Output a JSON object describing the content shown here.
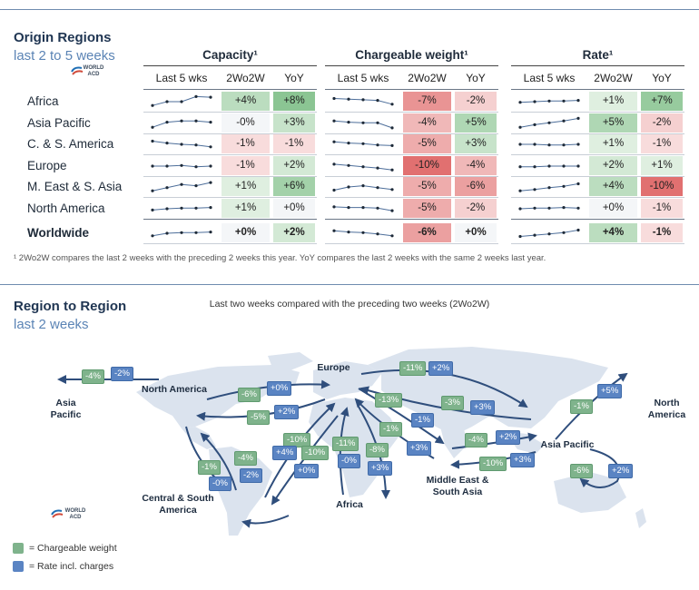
{
  "origin": {
    "title": "Origin Regions",
    "subtitle": "last 2 to 5 weeks",
    "logo_text": "WORLD ACD",
    "groups": [
      {
        "key": "capacity",
        "title": "Capacity¹"
      },
      {
        "key": "chargeable_weight",
        "title": "Chargeable weight¹"
      },
      {
        "key": "rate",
        "title": "Rate¹"
      }
    ],
    "col_headers": [
      "Last 5 wks",
      "2Wo2W",
      "YoY"
    ],
    "footnote": "¹ 2Wo2W compares the last 2 weeks with the preceding 2 weeks this year. YoY compares the last 2 weeks with the same 2 weeks last year."
  },
  "region_map": {
    "title": "Region to Region",
    "subtitle": "last 2 weeks",
    "caption": "Last two weeks compared with the preceding two weeks (2Wo2W)",
    "logo_text": "WORLD ACD",
    "places": {
      "asia_pacific_w": "Asia Pacific",
      "north_america": "North America",
      "europe": "Europe",
      "north_america_e": "North America",
      "asia_pacific": "Asia Pacific",
      "central_south_america": "Central & South America",
      "africa": "Africa",
      "middle_east_south_asia": "Middle East & South Asia"
    },
    "legend": [
      {
        "label": "= Chargeable weight",
        "color": "#7fb38c"
      },
      {
        "label": "= Rate incl. charges",
        "color": "#5a84c3"
      }
    ]
  },
  "chart_data": [
    {
      "type": "table",
      "title": "Origin Regions",
      "subtitle": "last 2 to 5 weeks",
      "regions": [
        "Africa",
        "Asia Pacific",
        "C. & S. America",
        "Europe",
        "M. East & S. Asia",
        "North America",
        "Worldwide"
      ],
      "metrics": [
        {
          "name": "Capacity¹",
          "last5": [
            [
              0.2,
              0.5,
              0.5,
              0.9,
              0.85
            ],
            [
              0.2,
              0.6,
              0.7,
              0.7,
              0.6
            ],
            [
              0.75,
              0.6,
              0.5,
              0.45,
              0.3
            ],
            [
              0.5,
              0.5,
              0.55,
              0.45,
              0.5
            ],
            [
              0.2,
              0.45,
              0.7,
              0.6,
              0.85
            ],
            [
              0.4,
              0.5,
              0.55,
              0.55,
              0.6
            ],
            [
              0.3,
              0.5,
              0.55,
              0.55,
              0.6
            ]
          ],
          "wo2w": [
            "+4%",
            "-0%",
            "-1%",
            "-1%",
            "+1%",
            "+1%",
            "+0%"
          ],
          "yoy": [
            "+8%",
            "+3%",
            "-1%",
            "+2%",
            "+6%",
            "+0%",
            "+2%"
          ]
        },
        {
          "name": "Chargeable weight¹",
          "last5": [
            [
              0.75,
              0.7,
              0.65,
              0.6,
              0.3
            ],
            [
              0.7,
              0.6,
              0.55,
              0.55,
              0.15
            ],
            [
              0.7,
              0.6,
              0.55,
              0.45,
              0.4
            ],
            [
              0.65,
              0.55,
              0.45,
              0.35,
              0.2
            ],
            [
              0.25,
              0.5,
              0.6,
              0.45,
              0.3
            ],
            [
              0.65,
              0.6,
              0.6,
              0.55,
              0.35
            ],
            [
              0.7,
              0.6,
              0.55,
              0.45,
              0.3
            ]
          ],
          "wo2w": [
            "-7%",
            "-4%",
            "-5%",
            "-10%",
            "-5%",
            "-5%",
            "-6%"
          ],
          "yoy": [
            "-2%",
            "+5%",
            "+3%",
            "-4%",
            "-6%",
            "-2%",
            "+0%"
          ]
        },
        {
          "name": "Rate¹",
          "last5": [
            [
              0.45,
              0.5,
              0.55,
              0.55,
              0.6
            ],
            [
              0.2,
              0.4,
              0.55,
              0.7,
              0.9
            ],
            [
              0.5,
              0.5,
              0.45,
              0.45,
              0.5
            ],
            [
              0.45,
              0.45,
              0.5,
              0.5,
              0.5
            ],
            [
              0.2,
              0.3,
              0.45,
              0.55,
              0.75
            ],
            [
              0.5,
              0.55,
              0.55,
              0.6,
              0.55
            ],
            [
              0.25,
              0.35,
              0.45,
              0.55,
              0.75
            ]
          ],
          "wo2w": [
            "+1%",
            "+5%",
            "+1%",
            "+2%",
            "+4%",
            "+0%",
            "+4%"
          ],
          "yoy": [
            "+7%",
            "-2%",
            "-1%",
            "+1%",
            "-10%",
            "-1%",
            "-1%"
          ]
        }
      ]
    },
    {
      "type": "table",
      "title": "Region to Region",
      "subtitle": "last 2 weeks",
      "flows": [
        {
          "from": "North America",
          "to": "Asia Pacific",
          "chargeable_weight": "-4%",
          "rate": "-2%"
        },
        {
          "from": "North America",
          "to": "Europe",
          "chargeable_weight": "-6%",
          "rate": "+0%"
        },
        {
          "from": "Europe",
          "to": "North America",
          "chargeable_weight": "-5%",
          "rate": "+2%"
        },
        {
          "from": "Europe",
          "to": "Asia Pacific",
          "chargeable_weight": "-11%",
          "rate": "+2%"
        },
        {
          "from": "Asia Pacific",
          "to": "Europe",
          "chargeable_weight": "-3%",
          "rate": "+3%"
        },
        {
          "from": "Europe",
          "to": "Middle East & South Asia",
          "chargeable_weight": "-13%",
          "rate": "-1%"
        },
        {
          "from": "Middle East & South Asia",
          "to": "Europe",
          "chargeable_weight": "-1%",
          "rate": "+3%"
        },
        {
          "from": "Asia Pacific",
          "to": "North America",
          "chargeable_weight": "-1%",
          "rate": "+5%"
        },
        {
          "from": "Middle East & South Asia",
          "to": "Asia Pacific",
          "chargeable_weight": "-4%",
          "rate": "+2%"
        },
        {
          "from": "Asia Pacific",
          "to": "Middle East & South Asia",
          "chargeable_weight": "-10%",
          "rate": "+3%"
        },
        {
          "from": "Asia Pacific",
          "to": "Asia Pacific",
          "chargeable_weight": "-6%",
          "rate": "+2%"
        },
        {
          "from": "North America",
          "to": "Central & South America",
          "chargeable_weight": "-1%",
          "rate": "-0%"
        },
        {
          "from": "Central & South America",
          "to": "North America",
          "chargeable_weight": "-4%",
          "rate": "-2%"
        },
        {
          "from": "Central & South America",
          "to": "Europe",
          "chargeable_weight": "-10%",
          "rate": "+4%"
        },
        {
          "from": "Europe",
          "to": "Central & South America",
          "chargeable_weight": "-10%",
          "rate": "+0%"
        },
        {
          "from": "Africa",
          "to": "Europe",
          "chargeable_weight": "-11%",
          "rate": "-0%"
        },
        {
          "from": "Europe",
          "to": "Africa",
          "chargeable_weight": "-8%",
          "rate": "+3%"
        }
      ]
    }
  ]
}
